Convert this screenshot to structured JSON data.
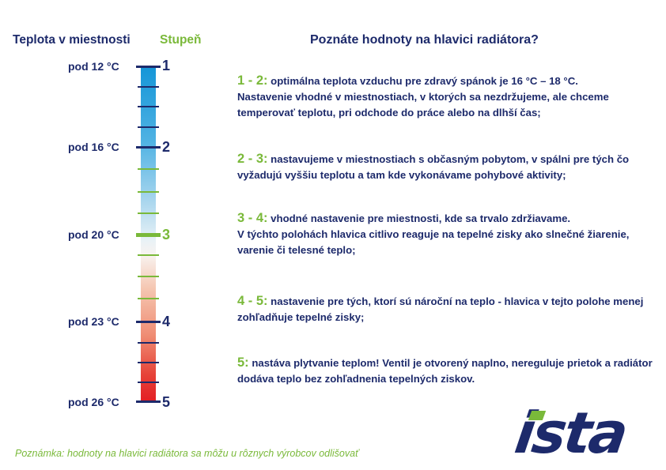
{
  "header": {
    "temp_column_title": "Teplota v miestnosti",
    "level_column_title": "Stupeň",
    "main_title": "Poznáte hodnoty na hlavici radiátora?"
  },
  "scale": {
    "temperatures": [
      "pod 12 °C",
      "pod 16 °C",
      "pod 20 °C",
      "pod 23 °C",
      "pod 26 °C"
    ],
    "levels": [
      "1",
      "2",
      "3",
      "4",
      "5"
    ]
  },
  "descriptions": [
    {
      "range": "1 - 2:",
      "text": " optimálna teplota vzduchu pre zdravý spánok je 16 °C – 18 °C.\nNastavenie vhodné v miestnostiach, v ktorých sa nezdržujeme, ale chceme temperovať teplotu, pri odchode do práce alebo na dlhší čas;"
    },
    {
      "range": "2 - 3:",
      "text": " nastavujeme v miestnostiach s občasným pobytom, v spálni pre tých čo vyžadujú vyššiu teplotu a tam kde vykonávame pohybové aktivity;"
    },
    {
      "range": "3 - 4:",
      "text": " vhodné nastavenie pre miestnosti, kde sa trvalo zdržiavame.\nV týchto polohách hlavica citlivo reaguje na tepelné zisky ako slnečné žiarenie, varenie či telesné teplo;"
    },
    {
      "range": "4 - 5:",
      "text": " nastavenie pre tých, ktorí sú nároční na teplo - hlavica v tejto polohe menej zohľadňuje tepelné zisky;"
    },
    {
      "range": "5:",
      "text": " nastáva plytvanie teplom! Ventil je otvorený naplno, nereguluje prietok a radiátor dodáva teplo bez zohľadnenia tepelných ziskov."
    }
  ],
  "note": "Poznámka: hodnoty na hlavici radiátora sa môžu u rôznych výrobcov odlišovať",
  "logo": {
    "text": "ista"
  },
  "colors": {
    "navy": "#1d2a6b",
    "green": "#7ab93a",
    "cold": "#1596d8",
    "hot": "#e31e24"
  }
}
